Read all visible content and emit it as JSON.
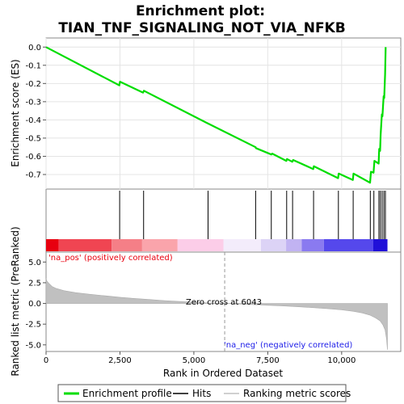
{
  "chart_data": {
    "type": "line",
    "title_line1": "Enrichment plot:",
    "title_line2": "TIAN_TNF_SIGNALING_NOT_VIA_NFKB",
    "top_panel": {
      "ylabel": "Enrichment score (ES)",
      "ylim": [
        -0.78,
        0.05
      ],
      "yticks": [
        0.0,
        -0.1,
        -0.2,
        -0.3,
        -0.4,
        -0.5,
        -0.6,
        -0.7
      ],
      "ytick_labels": [
        "0.0",
        "-0.1",
        "-0.2",
        "-0.3",
        "-0.4",
        "-0.5",
        "-0.6",
        "-0.7"
      ],
      "series": [
        {
          "name": "Enrichment profile",
          "color": "#00dd00",
          "x": [
            0,
            2480,
            2500,
            3280,
            3310,
            5480,
            7090,
            7100,
            7620,
            7650,
            8130,
            8150,
            8330,
            8360,
            9040,
            9060,
            9880,
            9900,
            10380,
            10400,
            10960,
            10990,
            11080,
            11110,
            11250,
            11270,
            11300,
            11320,
            11360,
            11380,
            11420,
            11440,
            11470,
            11490
          ],
          "y": [
            0.0,
            -0.21,
            -0.19,
            -0.25,
            -0.24,
            -0.42,
            -0.55,
            -0.555,
            -0.59,
            -0.585,
            -0.625,
            -0.615,
            -0.63,
            -0.62,
            -0.67,
            -0.655,
            -0.72,
            -0.695,
            -0.73,
            -0.695,
            -0.745,
            -0.685,
            -0.69,
            -0.625,
            -0.64,
            -0.56,
            -0.57,
            -0.48,
            -0.37,
            -0.38,
            -0.27,
            -0.28,
            -0.15,
            0.0
          ]
        }
      ]
    },
    "hits": {
      "name": "Hits",
      "positions": [
        2490,
        3300,
        5480,
        7090,
        7620,
        8140,
        8340,
        9050,
        9890,
        10390,
        10970,
        11090,
        11260,
        11310,
        11370,
        11430,
        11480
      ]
    },
    "heat_bar": {
      "colors": [
        "#e8000f",
        "#f04552",
        "#f57f87",
        "#faa4ab",
        "#fccde8",
        "#f3ecfb",
        "#dcd3f6",
        "#c1b3f2",
        "#8a7af0",
        "#5548ec",
        "#2010d8"
      ],
      "boundaries": [
        0,
        430,
        2220,
        3250,
        4450,
        6000,
        7270,
        8120,
        8650,
        9400,
        11070,
        11550
      ]
    },
    "bottom_panel": {
      "ylabel": "Ranked list metric (PreRanked)",
      "xlabel": "Rank in Ordered Dataset",
      "ylim": [
        -5.8,
        6.2
      ],
      "yticks": [
        5.0,
        2.5,
        0.0,
        -2.5,
        -5.0
      ],
      "ytick_labels": [
        "5.0",
        "2.5",
        "0.0",
        "-2.5",
        "-5.0"
      ],
      "xlim": [
        0,
        12000
      ],
      "xticks": [
        0,
        2500,
        5000,
        7500,
        10000
      ],
      "xtick_labels": [
        "0",
        "2,500",
        "5,000",
        "7,500",
        "10,000"
      ],
      "metric_curve": {
        "name": "Ranking metric scores",
        "color": "#c0c0c0",
        "x": [
          0,
          30,
          100,
          200,
          350,
          600,
          1000,
          1500,
          2000,
          2500,
          3000,
          3500,
          4000,
          4500,
          5000,
          5500,
          6043,
          6500,
          7000,
          7500,
          8000,
          8500,
          9000,
          9500,
          10000,
          10400,
          10700,
          10950,
          11150,
          11300,
          11400,
          11470,
          11520,
          11550
        ],
        "y": [
          3.0,
          2.7,
          2.4,
          2.05,
          1.8,
          1.55,
          1.3,
          1.1,
          0.92,
          0.75,
          0.6,
          0.47,
          0.35,
          0.24,
          0.14,
          0.06,
          0.0,
          -0.06,
          -0.14,
          -0.22,
          -0.3,
          -0.4,
          -0.5,
          -0.62,
          -0.78,
          -0.95,
          -1.15,
          -1.4,
          -1.75,
          -2.1,
          -2.6,
          -3.2,
          -4.3,
          -5.6
        ]
      },
      "zero_cross": {
        "label": "Zero cross at 6043",
        "rank": 6043
      },
      "pos_label": "'na_pos' (positively correlated)",
      "neg_label": "'na_neg' (negatively correlated)",
      "pos_color": "#e8000f",
      "neg_color": "#2020e8"
    },
    "n_ranks": 11550,
    "legend": {
      "placement": "bottom",
      "items": [
        {
          "label": "Enrichment profile",
          "color": "#00dd00"
        },
        {
          "label": "Hits",
          "color": "#000000"
        },
        {
          "label": "Ranking metric scores",
          "color": "#c0c0c0"
        }
      ]
    }
  }
}
